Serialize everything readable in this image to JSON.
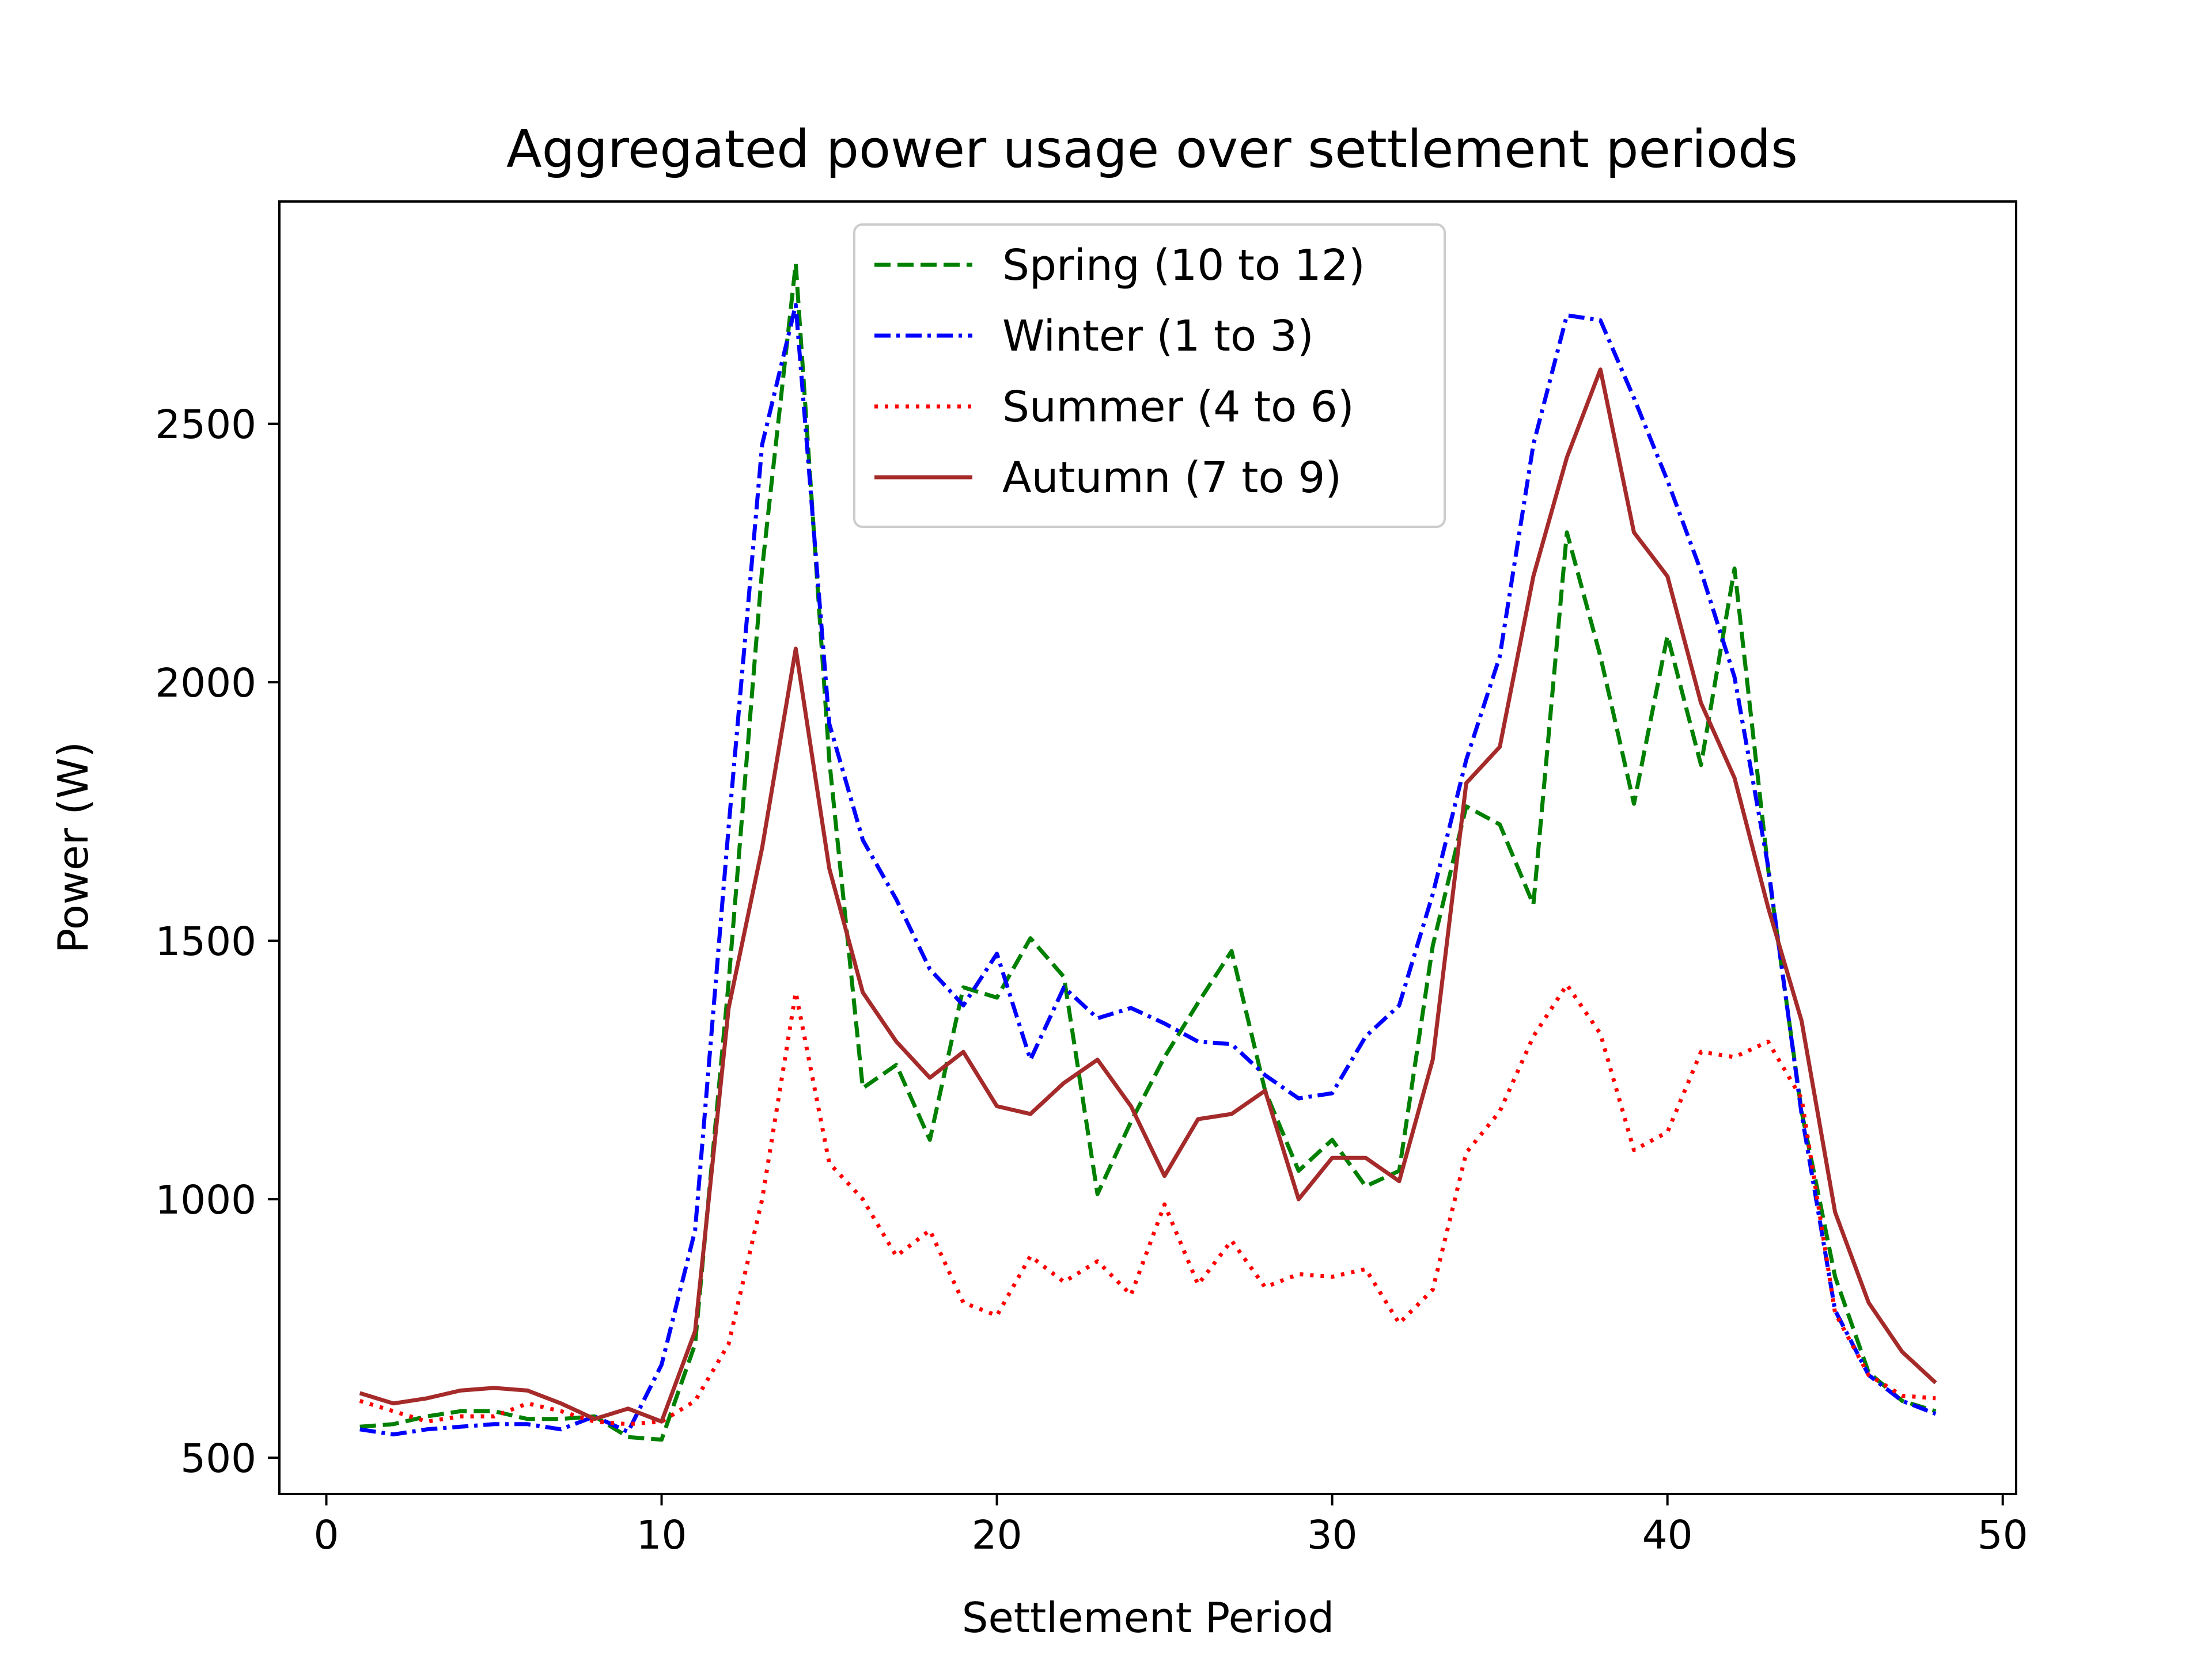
{
  "chart_data": {
    "type": "line",
    "title": "Aggregated power usage over settlement periods",
    "xlabel": "Settlement Period",
    "ylabel": "Power (W)",
    "xlim": [
      -1.4,
      50.4
    ],
    "ylim": [
      430,
      2930
    ],
    "xticks": [
      0,
      10,
      20,
      30,
      40,
      50
    ],
    "yticks": [
      500,
      1000,
      1500,
      2000,
      2500
    ],
    "grid": false,
    "legend_position": "top-center",
    "x": [
      1,
      2,
      3,
      4,
      5,
      6,
      7,
      8,
      9,
      10,
      11,
      12,
      13,
      14,
      15,
      16,
      17,
      18,
      19,
      20,
      21,
      22,
      23,
      24,
      25,
      26,
      27,
      28,
      29,
      30,
      31,
      32,
      33,
      34,
      35,
      36,
      37,
      38,
      39,
      40,
      41,
      42,
      43,
      44,
      45,
      46,
      47,
      48
    ],
    "series": [
      {
        "name": "Spring (10 to 12)",
        "color": "#008000",
        "dash": "dashed",
        "values": [
          560,
          565,
          580,
          590,
          590,
          575,
          575,
          580,
          540,
          535,
          720,
          1420,
          2220,
          2810,
          1850,
          1215,
          1260,
          1115,
          1410,
          1390,
          1505,
          1430,
          1010,
          1150,
          1275,
          1380,
          1480,
          1210,
          1055,
          1115,
          1025,
          1055,
          1490,
          1760,
          1725,
          1570,
          2290,
          2050,
          1765,
          2090,
          1840,
          2220,
          1640,
          1170,
          850,
          665,
          610,
          590
        ]
      },
      {
        "name": "Winter (1 to 3)",
        "color": "#0000ff",
        "dash": "dashdot",
        "values": [
          555,
          545,
          555,
          560,
          565,
          565,
          555,
          580,
          550,
          680,
          940,
          1720,
          2460,
          2730,
          1920,
          1695,
          1580,
          1445,
          1375,
          1475,
          1270,
          1410,
          1350,
          1370,
          1340,
          1305,
          1300,
          1240,
          1195,
          1205,
          1315,
          1375,
          1590,
          1850,
          2050,
          2460,
          2710,
          2700,
          2550,
          2390,
          2215,
          2010,
          1645,
          1165,
          785,
          660,
          610,
          585
        ]
      },
      {
        "name": "Summer (4 to 6)",
        "color": "#ff0000",
        "dash": "dotted",
        "values": [
          610,
          590,
          570,
          580,
          580,
          605,
          590,
          570,
          565,
          570,
          610,
          720,
          1000,
          1400,
          1070,
          1000,
          890,
          940,
          800,
          775,
          890,
          840,
          880,
          815,
          990,
          835,
          920,
          830,
          855,
          850,
          865,
          760,
          825,
          1090,
          1170,
          1315,
          1415,
          1320,
          1095,
          1130,
          1285,
          1275,
          1305,
          1195,
          780,
          660,
          620,
          615
        ]
      },
      {
        "name": "Autumn (7 to 9)",
        "color": "#a52a2a",
        "dash": "solid",
        "values": [
          625,
          605,
          615,
          630,
          635,
          630,
          605,
          575,
          595,
          570,
          745,
          1370,
          1680,
          2065,
          1640,
          1400,
          1305,
          1235,
          1285,
          1180,
          1165,
          1225,
          1270,
          1180,
          1045,
          1155,
          1165,
          1210,
          1000,
          1080,
          1080,
          1035,
          1270,
          1805,
          1875,
          2205,
          2435,
          2605,
          2290,
          2205,
          1960,
          1815,
          1565,
          1345,
          975,
          800,
          705,
          645
        ]
      }
    ]
  }
}
